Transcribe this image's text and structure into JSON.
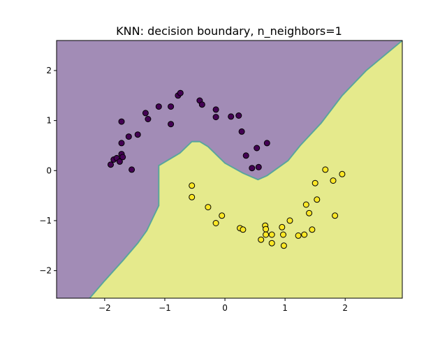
{
  "chart_data": {
    "type": "scatter",
    "title": "KNN: decision boundary, n_neighbors=1",
    "xlabel": "",
    "ylabel": "",
    "xlim": [
      -2.8,
      2.95
    ],
    "ylim": [
      -2.55,
      2.6
    ],
    "xticks": [
      -2,
      -1,
      0,
      1,
      2
    ],
    "yticks": [
      -2,
      -1,
      0,
      1,
      2
    ],
    "xtick_labels": [
      "−2",
      "−1",
      "0",
      "1",
      "2"
    ],
    "ytick_labels": [
      "−2",
      "−1",
      "0",
      "1",
      "2"
    ],
    "grid": false,
    "legend": "none",
    "colors": {
      "region_class0": "#a28cb6",
      "region_class1": "#e5ea8c",
      "boundary": "#5aa59d",
      "class0": "#440154",
      "class1": "#fde725",
      "edge": "#000000"
    },
    "regions": {
      "boundary_line": [
        [
          -2.25,
          -2.55
        ],
        [
          -2.0,
          -2.2
        ],
        [
          -1.7,
          -1.8
        ],
        [
          -1.45,
          -1.45
        ],
        [
          -1.3,
          -1.2
        ],
        [
          -1.1,
          -0.7
        ],
        [
          -1.1,
          0.1
        ],
        [
          -0.75,
          0.35
        ],
        [
          -0.55,
          0.58
        ],
        [
          -0.42,
          0.58
        ],
        [
          -0.28,
          0.48
        ],
        [
          0.0,
          0.15
        ],
        [
          0.3,
          -0.05
        ],
        [
          0.55,
          -0.18
        ],
        [
          0.7,
          -0.1
        ],
        [
          1.05,
          0.2
        ],
        [
          1.25,
          0.5
        ],
        [
          1.6,
          0.95
        ],
        [
          1.95,
          1.5
        ],
        [
          2.35,
          2.0
        ],
        [
          2.95,
          2.6
        ]
      ]
    },
    "series": [
      {
        "class": 0,
        "points": [
          [
            -1.9,
            0.12
          ],
          [
            -1.85,
            0.22
          ],
          [
            -1.8,
            0.25
          ],
          [
            -1.75,
            0.18
          ],
          [
            -1.72,
            0.33
          ],
          [
            -1.7,
            0.27
          ],
          [
            -1.72,
            0.55
          ],
          [
            -1.72,
            0.98
          ],
          [
            -1.6,
            0.68
          ],
          [
            -1.55,
            0.02
          ],
          [
            -1.45,
            0.72
          ],
          [
            -1.32,
            1.15
          ],
          [
            -1.28,
            1.03
          ],
          [
            -1.1,
            1.28
          ],
          [
            -0.9,
            1.28
          ],
          [
            -0.9,
            0.93
          ],
          [
            -0.78,
            1.5
          ],
          [
            -0.74,
            1.55
          ],
          [
            -0.42,
            1.4
          ],
          [
            -0.38,
            1.32
          ],
          [
            -0.15,
            1.22
          ],
          [
            -0.15,
            1.07
          ],
          [
            0.1,
            1.08
          ],
          [
            0.23,
            1.1
          ],
          [
            0.28,
            0.78
          ],
          [
            0.35,
            0.3
          ],
          [
            0.45,
            0.05
          ],
          [
            0.53,
            0.45
          ],
          [
            0.56,
            0.07
          ],
          [
            0.7,
            0.55
          ]
        ]
      },
      {
        "class": 1,
        "points": [
          [
            -0.55,
            -0.3
          ],
          [
            -0.55,
            -0.53
          ],
          [
            -0.28,
            -0.73
          ],
          [
            -0.15,
            -1.05
          ],
          [
            -0.05,
            -0.9
          ],
          [
            0.25,
            -1.15
          ],
          [
            0.3,
            -1.18
          ],
          [
            0.6,
            -1.38
          ],
          [
            0.67,
            -1.1
          ],
          [
            0.68,
            -1.17
          ],
          [
            0.68,
            -1.28
          ],
          [
            0.78,
            -1.28
          ],
          [
            0.78,
            -1.45
          ],
          [
            0.95,
            -1.13
          ],
          [
            0.97,
            -1.28
          ],
          [
            0.98,
            -1.5
          ],
          [
            1.08,
            -1.0
          ],
          [
            1.22,
            -1.3
          ],
          [
            1.32,
            -1.28
          ],
          [
            1.35,
            -0.68
          ],
          [
            1.4,
            -0.85
          ],
          [
            1.45,
            -1.18
          ],
          [
            1.5,
            -0.25
          ],
          [
            1.53,
            -0.58
          ],
          [
            1.67,
            0.02
          ],
          [
            1.8,
            -0.2
          ],
          [
            1.83,
            -0.9
          ],
          [
            1.95,
            -0.07
          ]
        ]
      }
    ]
  }
}
